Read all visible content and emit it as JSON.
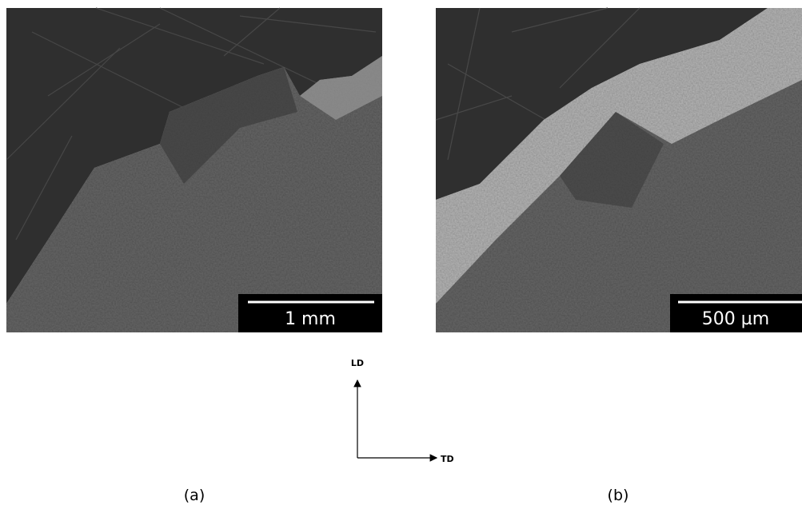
{
  "panels": [
    {
      "scale_bar": "1 mm",
      "caption": "(a)"
    },
    {
      "scale_bar": "500 µm",
      "caption": "(b)"
    }
  ],
  "axes": {
    "vertical": "LD",
    "horizontal": "TD"
  }
}
